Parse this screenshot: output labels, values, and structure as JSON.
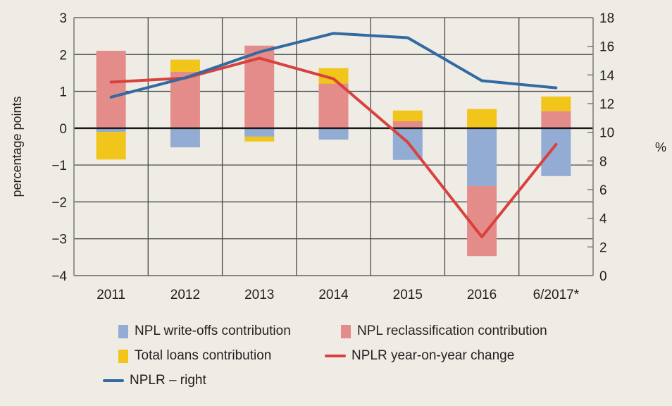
{
  "chart_data": {
    "type": "bar",
    "stacked": true,
    "categories": [
      "2011",
      "2012",
      "2013",
      "2014",
      "2015",
      "2016",
      "6/2017*"
    ],
    "ylabel": "percentage points",
    "ylabel_right": "%",
    "ylim": [
      -4,
      3
    ],
    "yticks": [
      -4,
      -3,
      -2,
      -1,
      0,
      1,
      2,
      3
    ],
    "ytick_labels": [
      "−4",
      "−3",
      "−2",
      "−1",
      "0",
      "1",
      "2",
      "3"
    ],
    "ylim_right": [
      0,
      18
    ],
    "yticks_right": [
      0,
      2,
      4,
      6,
      8,
      10,
      12,
      14,
      16,
      18
    ],
    "grid": true,
    "legend_position": "bottom",
    "series": [
      {
        "name": "NPL write-offs contribution",
        "kind": "bar",
        "color": "#92acd3",
        "values": [
          -0.1,
          -0.52,
          -0.23,
          -0.31,
          -0.86,
          -1.57,
          -1.3
        ]
      },
      {
        "name": "NPL reclassification contribution",
        "kind": "bar",
        "color": "#e48c8a",
        "values": [
          2.1,
          1.53,
          2.24,
          1.21,
          0.19,
          -1.9,
          0.46
        ]
      },
      {
        "name": "Total loans contribution",
        "kind": "bar",
        "color": "#f2c51b",
        "values": [
          -0.75,
          0.33,
          -0.13,
          0.42,
          0.29,
          0.52,
          0.4
        ]
      },
      {
        "name": "NPLR year-on-year change",
        "kind": "line",
        "axis": "left",
        "color": "#d8413d",
        "values": [
          1.25,
          1.36,
          1.9,
          1.34,
          -0.38,
          -2.95,
          -0.44
        ]
      },
      {
        "name": "NPLR – right",
        "kind": "line",
        "axis": "right",
        "color": "#336aa0",
        "values": [
          12.45,
          13.8,
          15.6,
          16.9,
          16.6,
          13.6,
          13.1
        ]
      }
    ]
  },
  "legend": [
    {
      "label": "NPL write-offs contribution",
      "type": "box",
      "color": "#92acd3"
    },
    {
      "label": "NPL reclassification contribution",
      "type": "box",
      "color": "#e48c8a"
    },
    {
      "label": "Total loans contribution",
      "type": "box",
      "color": "#f2c51b"
    },
    {
      "label": "NPLR year-on-year change",
      "type": "line",
      "color": "#d8413d"
    },
    {
      "label": "NPLR – right",
      "type": "line",
      "color": "#336aa0"
    }
  ]
}
